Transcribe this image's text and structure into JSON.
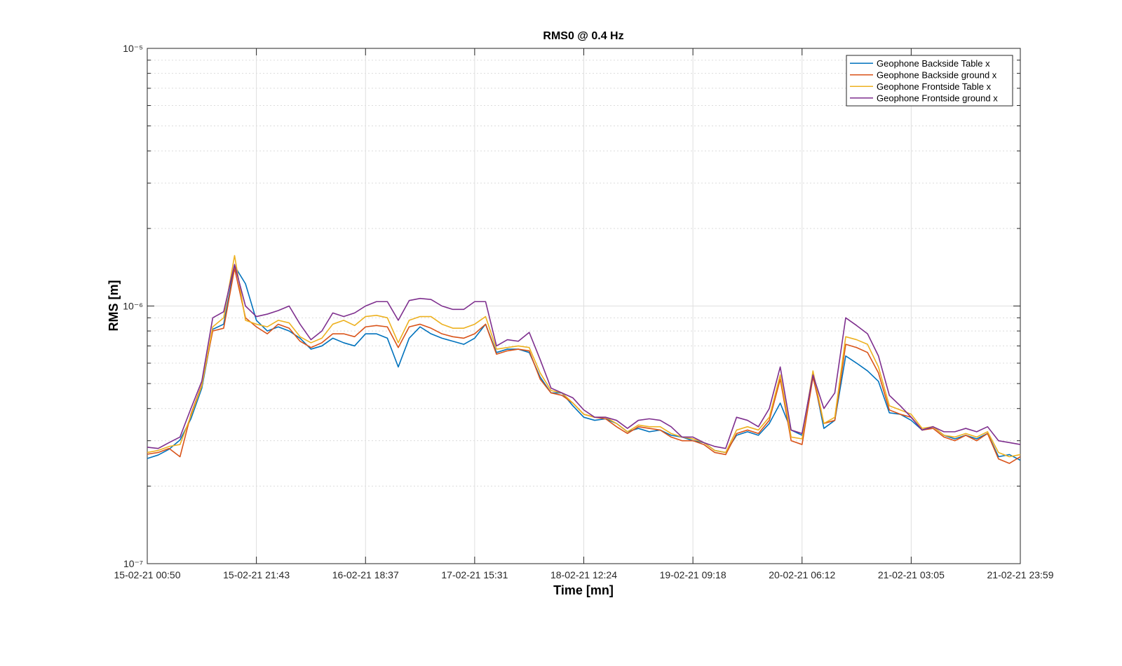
{
  "chart_data": {
    "type": "line",
    "title": "RMS0 @ 0.4 Hz",
    "xlabel": "Time [mn]",
    "ylabel": "RMS [m]",
    "ylog": true,
    "grid": true,
    "legend": "northeast",
    "xlim": [
      0,
      80
    ],
    "xticks": [
      {
        "value": 0,
        "label": "15-02-21 00:50"
      },
      {
        "value": 10,
        "label": "15-02-21 21:43"
      },
      {
        "value": 20,
        "label": "16-02-21 18:37"
      },
      {
        "value": 30,
        "label": "17-02-21 15:31"
      },
      {
        "value": 40,
        "label": "18-02-21 12:24"
      },
      {
        "value": 50,
        "label": "19-02-21 09:18"
      },
      {
        "value": 60,
        "label": "20-02-21 06:12"
      },
      {
        "value": 70,
        "label": "21-02-21 03:05"
      },
      {
        "value": 80,
        "label": "21-02-21 23:59"
      }
    ],
    "ylim": [
      1e-07,
      1e-05
    ],
    "yticks": [
      {
        "value": 1e-07,
        "label": "10⁻⁷"
      },
      {
        "value": 1e-06,
        "label": "10⁻⁶"
      },
      {
        "value": 1e-05,
        "label": "10⁻⁵"
      }
    ],
    "yminorticks": [
      2e-07,
      3e-07,
      4e-07,
      5e-07,
      6e-07,
      7e-07,
      8e-07,
      9e-07,
      2e-06,
      3e-06,
      4e-06,
      5e-06,
      6e-06,
      7e-06,
      8e-06,
      9e-06
    ],
    "x": [
      0,
      1,
      2,
      3,
      4,
      5,
      6,
      7,
      8,
      9,
      10,
      11,
      12,
      13,
      14,
      15,
      16,
      17,
      18,
      19,
      20,
      21,
      22,
      23,
      24,
      25,
      26,
      27,
      28,
      29,
      30,
      31,
      32,
      33,
      34,
      35,
      36,
      37,
      38,
      39,
      40,
      41,
      42,
      43,
      44,
      45,
      46,
      47,
      48,
      49,
      50,
      51,
      52,
      53,
      54,
      55,
      56,
      57,
      58,
      59,
      60,
      61,
      62,
      63,
      64,
      65,
      66,
      67,
      68,
      69,
      70,
      71,
      72,
      73,
      74,
      75,
      76,
      77,
      78,
      79,
      80
    ],
    "series": [
      {
        "name": "Geophone Backside Table x",
        "color": "#0072bd",
        "values": [
          2.56e-07,
          2.64e-07,
          2.78e-07,
          3.02e-07,
          3.65e-07,
          4.8e-07,
          8.12e-07,
          8.5e-07,
          1.43e-06,
          1.22e-06,
          8.8e-07,
          8e-07,
          8.3e-07,
          8e-07,
          7.5e-07,
          6.8e-07,
          7e-07,
          7.5e-07,
          7.2e-07,
          7e-07,
          7.8e-07,
          7.8e-07,
          7.5e-07,
          5.8e-07,
          7.5e-07,
          8.3e-07,
          7.8e-07,
          7.5e-07,
          7.3e-07,
          7.1e-07,
          7.5e-07,
          8.5e-07,
          6.6e-07,
          6.8e-07,
          6.8e-07,
          6.6e-07,
          5.3e-07,
          4.6e-07,
          4.6e-07,
          4.1e-07,
          3.7e-07,
          3.6e-07,
          3.65e-07,
          3.5e-07,
          3.25e-07,
          3.35e-07,
          3.25e-07,
          3.3e-07,
          3.15e-07,
          3.1e-07,
          3e-07,
          2.95e-07,
          2.75e-07,
          2.7e-07,
          3.15e-07,
          3.25e-07,
          3.15e-07,
          3.5e-07,
          4.2e-07,
          3.3e-07,
          3.15e-07,
          5.45e-07,
          3.35e-07,
          3.6e-07,
          6.4e-07,
          6e-07,
          5.6e-07,
          5.1e-07,
          3.85e-07,
          3.8e-07,
          3.6e-07,
          3.3e-07,
          3.4e-07,
          3.15e-07,
          3.05e-07,
          3.15e-07,
          3.05e-07,
          3.2e-07,
          2.6e-07,
          2.65e-07,
          2.52e-07
        ]
      },
      {
        "name": "Geophone Backside ground x",
        "color": "#d95319",
        "values": [
          2.66e-07,
          2.7e-07,
          2.8e-07,
          2.6e-07,
          3.8e-07,
          4.95e-07,
          8e-07,
          8.2e-07,
          1.4e-06,
          9e-07,
          8.3e-07,
          7.8e-07,
          8.5e-07,
          8.2e-07,
          7.3e-07,
          6.9e-07,
          7.2e-07,
          7.8e-07,
          7.8e-07,
          7.6e-07,
          8.3e-07,
          8.4e-07,
          8.3e-07,
          6.9e-07,
          8.3e-07,
          8.5e-07,
          8.2e-07,
          7.8e-07,
          7.6e-07,
          7.5e-07,
          7.8e-07,
          8.5e-07,
          6.5e-07,
          6.7e-07,
          6.8e-07,
          6.7e-07,
          5.2e-07,
          4.6e-07,
          4.5e-07,
          4.2e-07,
          3.8e-07,
          3.7e-07,
          3.65e-07,
          3.4e-07,
          3.2e-07,
          3.4e-07,
          3.35e-07,
          3.3e-07,
          3.1e-07,
          3e-07,
          3e-07,
          2.9e-07,
          2.7e-07,
          2.65e-07,
          3.2e-07,
          3.3e-07,
          3.2e-07,
          3.6e-07,
          5.2e-07,
          3e-07,
          2.9e-07,
          5.3e-07,
          3.5e-07,
          3.6e-07,
          7.1e-07,
          6.9e-07,
          6.6e-07,
          5.5e-07,
          3.95e-07,
          3.8e-07,
          3.7e-07,
          3.3e-07,
          3.35e-07,
          3.1e-07,
          3e-07,
          3.15e-07,
          3e-07,
          3.2e-07,
          2.55e-07,
          2.45e-07,
          2.6e-07
        ]
      },
      {
        "name": "Geophone Frontside Table x",
        "color": "#edb120",
        "values": [
          2.7e-07,
          2.75e-07,
          2.85e-07,
          2.9e-07,
          3.75e-07,
          4.9e-07,
          8.3e-07,
          9e-07,
          1.57e-06,
          8.8e-07,
          8.5e-07,
          8.3e-07,
          8.8e-07,
          8.6e-07,
          7.6e-07,
          7.2e-07,
          7.5e-07,
          8.5e-07,
          8.8e-07,
          8.4e-07,
          9.1e-07,
          9.2e-07,
          9e-07,
          7.2e-07,
          8.8e-07,
          9.1e-07,
          9.1e-07,
          8.5e-07,
          8.2e-07,
          8.2e-07,
          8.5e-07,
          9.1e-07,
          6.8e-07,
          6.9e-07,
          7e-07,
          6.9e-07,
          5.5e-07,
          4.7e-07,
          4.6e-07,
          4.2e-07,
          3.8e-07,
          3.7e-07,
          3.7e-07,
          3.5e-07,
          3.25e-07,
          3.45e-07,
          3.4e-07,
          3.4e-07,
          3.2e-07,
          3.1e-07,
          3.05e-07,
          2.95e-07,
          2.75e-07,
          2.7e-07,
          3.3e-07,
          3.4e-07,
          3.3e-07,
          3.7e-07,
          5.4e-07,
          3.1e-07,
          3.05e-07,
          5.6e-07,
          3.5e-07,
          3.7e-07,
          7.6e-07,
          7.4e-07,
          7.1e-07,
          5.8e-07,
          4.1e-07,
          3.95e-07,
          3.8e-07,
          3.35e-07,
          3.4e-07,
          3.15e-07,
          3.1e-07,
          3.2e-07,
          3.1e-07,
          3.25e-07,
          2.7e-07,
          2.6e-07,
          2.65e-07
        ]
      },
      {
        "name": "Geophone Frontside ground x",
        "color": "#7e2f8e",
        "values": [
          2.83e-07,
          2.8e-07,
          2.95e-07,
          3.1e-07,
          4e-07,
          5.11e-07,
          9e-07,
          9.5e-07,
          1.45e-06,
          1e-06,
          9.1e-07,
          9.3e-07,
          9.6e-07,
          1e-06,
          8.5e-07,
          7.4e-07,
          8e-07,
          9.4e-07,
          9.1e-07,
          9.4e-07,
          1e-06,
          1.04e-06,
          1.04e-06,
          8.8e-07,
          1.05e-06,
          1.07e-06,
          1.06e-06,
          1e-06,
          9.7e-07,
          9.7e-07,
          1.04e-06,
          1.04e-06,
          7e-07,
          7.4e-07,
          7.3e-07,
          7.9e-07,
          6.2e-07,
          4.8e-07,
          4.6e-07,
          4.4e-07,
          3.95e-07,
          3.7e-07,
          3.7e-07,
          3.6e-07,
          3.35e-07,
          3.6e-07,
          3.65e-07,
          3.6e-07,
          3.4e-07,
          3.1e-07,
          3.1e-07,
          2.95e-07,
          2.85e-07,
          2.8e-07,
          3.7e-07,
          3.6e-07,
          3.4e-07,
          4e-07,
          5.8e-07,
          3.3e-07,
          3.2e-07,
          5.4e-07,
          4e-07,
          4.6e-07,
          9e-07,
          8.4e-07,
          7.8e-07,
          6.4e-07,
          4.5e-07,
          4.1e-07,
          3.7e-07,
          3.3e-07,
          3.4e-07,
          3.25e-07,
          3.25e-07,
          3.35e-07,
          3.25e-07,
          3.4e-07,
          3e-07,
          2.95e-07,
          2.9e-07
        ]
      }
    ]
  }
}
